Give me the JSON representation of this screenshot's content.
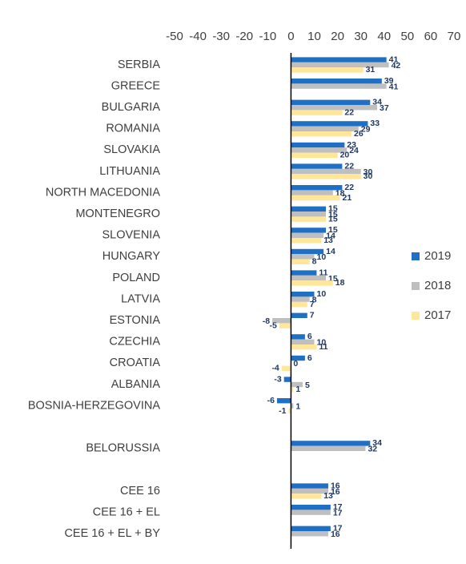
{
  "chart_data": {
    "type": "hbar",
    "categories": [
      "SERBIA",
      "GREECE",
      "BULGARIA",
      "ROMANIA",
      "SLOVAKIA",
      "LITHUANIA",
      "NORTH MACEDONIA",
      "MONTENEGRO",
      "SLOVENIA",
      "HUNGARY",
      "POLAND",
      "LATVIA",
      "ESTONIA",
      "CZECHIA",
      "CROATIA",
      "ALBANIA",
      "BOSNIA-HERZEGOVINA",
      null,
      "BELORUSSIA",
      null,
      "CEE 16",
      "CEE 16 + EL",
      "CEE 16 + EL + BY"
    ],
    "series": [
      {
        "name": "2019",
        "color": "#1f6fc5",
        "values": [
          41,
          39,
          34,
          33,
          23,
          22,
          22,
          15,
          15,
          14,
          11,
          10,
          7,
          6,
          6,
          -3,
          -6,
          null,
          34,
          null,
          16,
          17,
          17
        ]
      },
      {
        "name": "2018",
        "color": "#bfbfbf",
        "values": [
          42,
          41,
          37,
          29,
          24,
          30,
          18,
          15,
          14,
          10,
          15,
          8,
          -8,
          10,
          0,
          5,
          1,
          null,
          32,
          null,
          16,
          17,
          16
        ]
      },
      {
        "name": "2017",
        "color": "#ffe699",
        "values": [
          31,
          null,
          22,
          26,
          20,
          30,
          21,
          15,
          13,
          8,
          18,
          7,
          -5,
          11,
          -4,
          1,
          -1,
          null,
          null,
          null,
          13,
          null,
          null
        ]
      }
    ],
    "xlim": [
      -50,
      70
    ],
    "xticks": [
      -50,
      -40,
      -30,
      -20,
      -10,
      0,
      10,
      20,
      30,
      40,
      50,
      60,
      70
    ],
    "grid": false,
    "legend": "right"
  }
}
